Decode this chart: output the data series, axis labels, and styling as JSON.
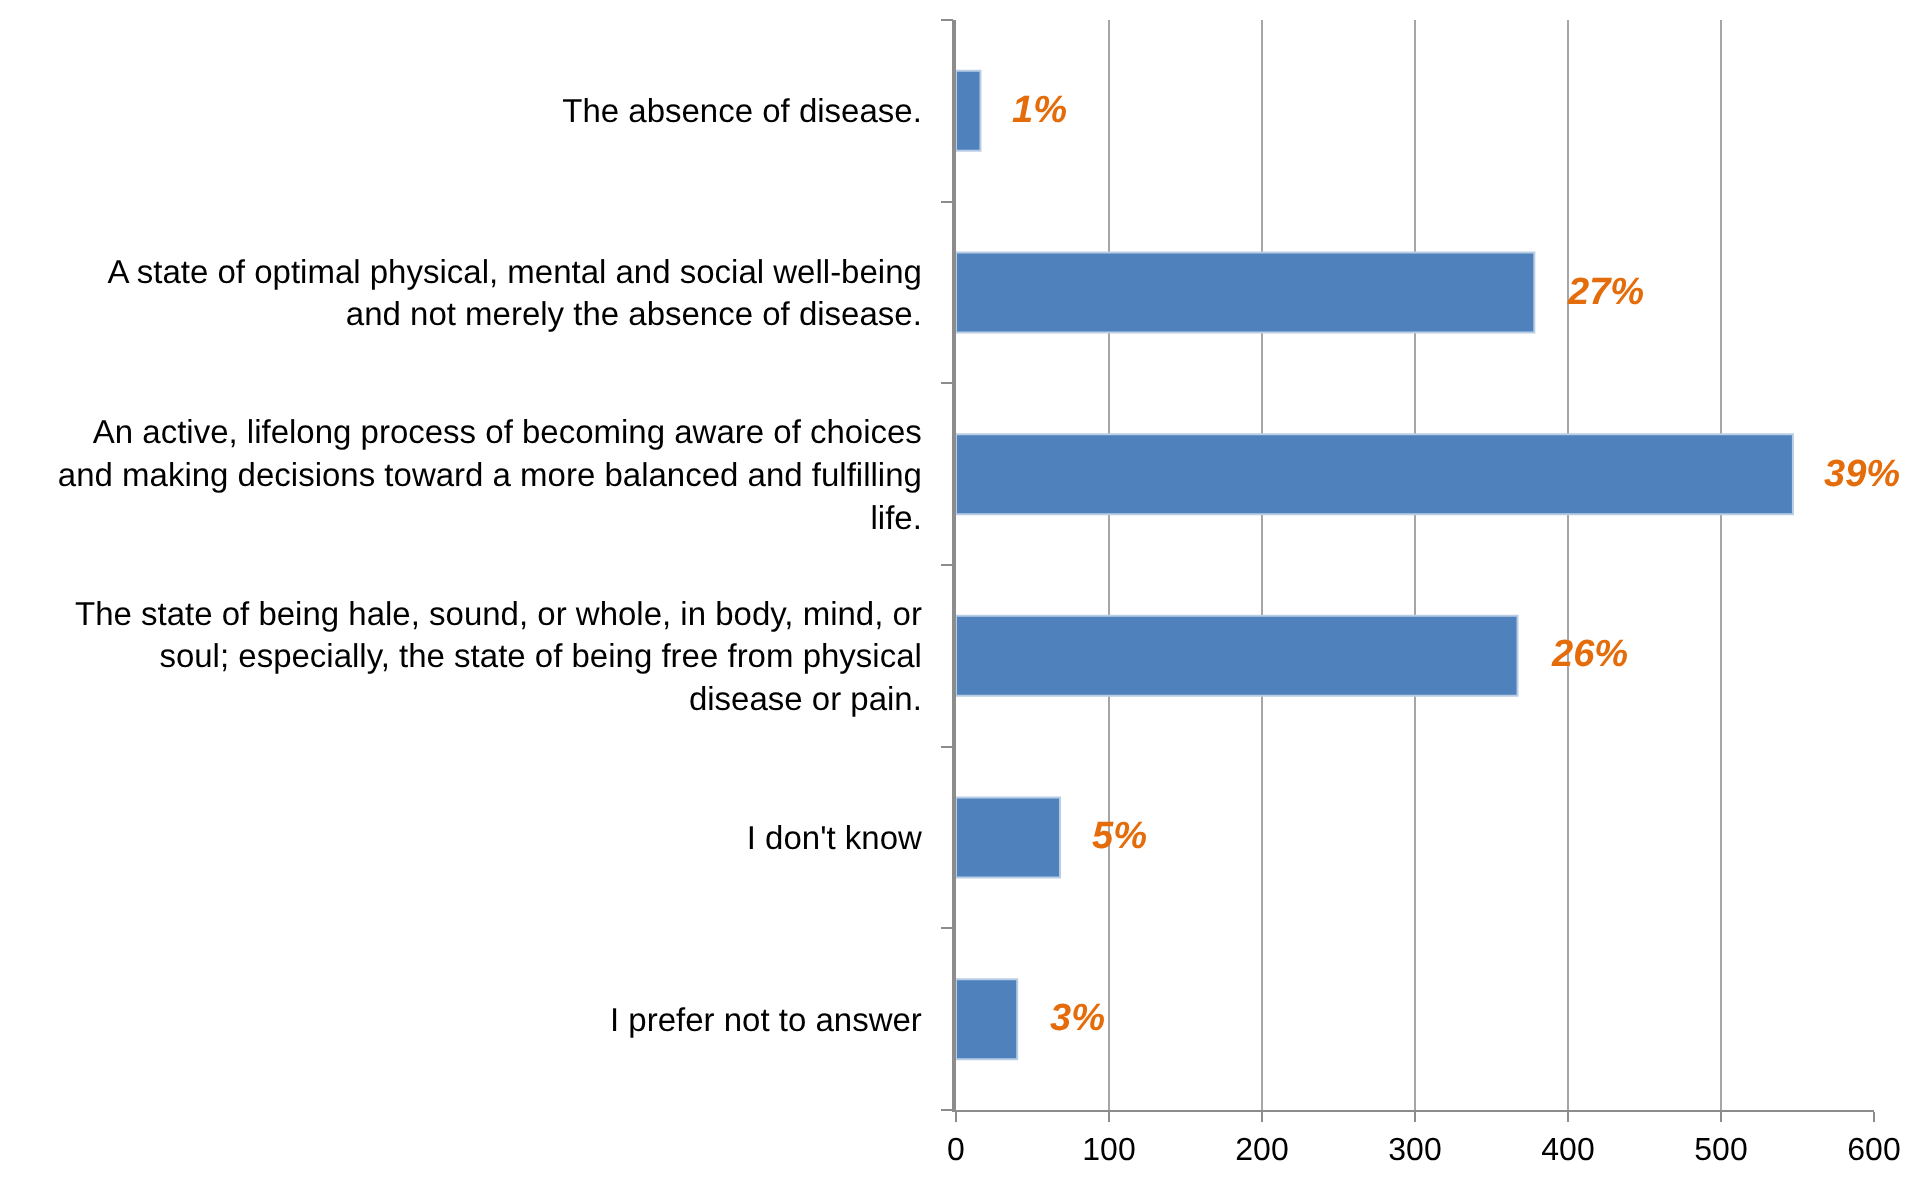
{
  "chart_data": {
    "type": "bar",
    "orientation": "horizontal",
    "categories": [
      "The absence of disease.",
      "A state of optimal physical, mental and social well-being and not merely the absence of disease.",
      "An active, lifelong process of becoming aware of choices and making decisions toward a more balanced and fulfilling life.",
      "The state of being hale, sound, or whole, in body, mind, or soul; especially, the state of being free from physical disease or pain.",
      "I don't know",
      "I prefer not to answer"
    ],
    "values": [
      16,
      378,
      547,
      367,
      68,
      40
    ],
    "color": "#4f81bd",
    "annotations": [
      {
        "text": "1%",
        "x": 16,
        "y": "The absence of disease."
      },
      {
        "text": "27%",
        "x": 378,
        "y": "A state of optimal physical, mental and social well-being and not merely the absence of disease."
      },
      {
        "text": "39%",
        "x": 547,
        "y": "An active, lifelong process of becoming aware of choices and making decisions toward a more balanced and fulfilling life."
      },
      {
        "text": "26%",
        "x": 367,
        "y": "The state of being hale, sound, or whole, in body, mind, or soul; especially, the state of being free from physical disease or pain."
      },
      {
        "text": "5%",
        "x": 68,
        "y": "I don't know"
      },
      {
        "text": "3%",
        "x": 40,
        "y": "I prefer not to answer"
      }
    ],
    "xlim": [
      0,
      600
    ],
    "xticks": [
      0,
      100,
      200,
      300,
      400,
      500,
      600
    ],
    "grid": "x"
  }
}
